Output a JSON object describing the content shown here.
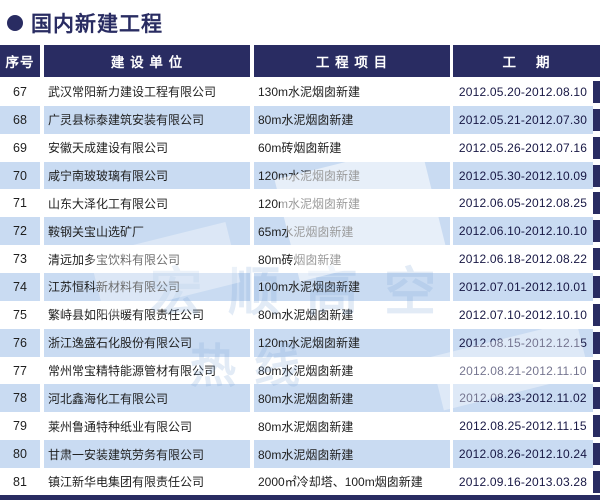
{
  "page": {
    "title": "国内新建工程"
  },
  "colors": {
    "navy": "#292c62",
    "stripe": "#c9dbf2",
    "text": "#1e1e1e",
    "date_text": "#171744"
  },
  "table": {
    "headers": [
      "序号",
      "建 设 单 位",
      "工 程 项 目",
      "工    期"
    ],
    "rows": [
      {
        "no": "67",
        "company": "武汉常阳新力建设工程有限公司",
        "project": "130m水泥烟囱新建",
        "period": "2012.05.20-2012.08.10"
      },
      {
        "no": "68",
        "company": "广灵县标泰建筑安装有限公司",
        "project": "80m水泥烟囱新建",
        "period": "2012.05.21-2012.07.30"
      },
      {
        "no": "69",
        "company": "安徽天成建设有限公司",
        "project": "60m砖烟囱新建",
        "period": "2012.05.26-2012.07.16"
      },
      {
        "no": "70",
        "company": "咸宁南玻玻璃有限公司",
        "project": "120m水泥烟囱新建",
        "period": "2012.05.30-2012.10.09"
      },
      {
        "no": "71",
        "company": "山东大泽化工有限公司",
        "project": "120m水泥烟囱新建",
        "period": "2012.06.05-2012.08.25"
      },
      {
        "no": "72",
        "company": "鞍钢关宝山选矿厂",
        "project": "65m水泥烟囱新建",
        "period": "2012.06.10-2012.10.10"
      },
      {
        "no": "73",
        "company": "清远加多宝饮料有限公司",
        "project": "80m砖烟囱新建",
        "period": "2012.06.18-2012.08.22"
      },
      {
        "no": "74",
        "company": "江苏恒科新材料有限公司",
        "project": "100m水泥烟囱新建",
        "period": "2012.07.01-2012.10.01"
      },
      {
        "no": "75",
        "company": "繁峙县如阳供暖有限责任公司",
        "project": "80m水泥烟囱新建",
        "period": "2012.07.10-2012.10.10"
      },
      {
        "no": "76",
        "company": "浙江逸盛石化股份有限公司",
        "project": "120m水泥烟囱新建",
        "period": "2012.08.15-2012.12.15"
      },
      {
        "no": "77",
        "company": "常州常宝精特能源管材有限公司",
        "project": "80m水泥烟囱新建",
        "period": "2012.08.21-2012.11.10"
      },
      {
        "no": "78",
        "company": "河北鑫海化工有限公司",
        "project": "80m水泥烟囱新建",
        "period": "2012.08.23-2012.11.02"
      },
      {
        "no": "79",
        "company": "莱州鲁通特种纸业有限公司",
        "project": "80m水泥烟囱新建",
        "period": "2012.08.25-2012.11.15"
      },
      {
        "no": "80",
        "company": "甘肃一安装建筑劳务有限公司",
        "project": "80m水泥烟囱新建",
        "period": "2012.08.26-2012.10.24"
      },
      {
        "no": "81",
        "company": "镇江新华电集团有限责任公司",
        "project": "2000㎡冷却塔、100m烟囱新建",
        "period": "2012.09.16-2013.03.28"
      }
    ]
  },
  "watermark": {
    "line1": "宏顺高空",
    "line2": "热线"
  }
}
